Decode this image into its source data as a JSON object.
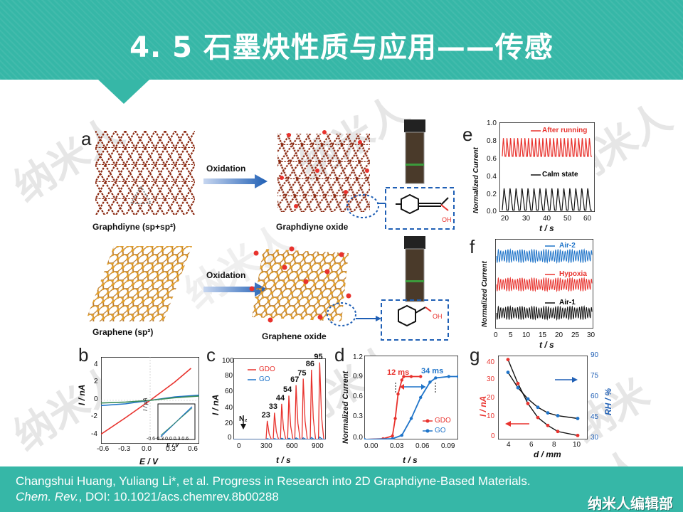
{
  "header": {
    "title": "4. 5  石墨炔性质与应用——传感"
  },
  "watermarks": [
    "纳米人",
    "纳米人",
    "纳米人",
    "纳米人",
    "纳米人",
    "纳米人",
    "纳米人"
  ],
  "figure": {
    "panel_a": {
      "letter": "a",
      "arrow_label_top": "Oxidation",
      "arrow_label_bottom": "Oxidation",
      "caption_graphdiyne": "Graphdiyne (sp+sp²)",
      "caption_graphdiyne_oxide": "Graphdiyne oxide",
      "caption_graphene": "Graphene (sp²)",
      "caption_graphene_oxide": "Graphene oxide",
      "oh_label": "OH"
    },
    "panel_b": {
      "letter": "b",
      "ylabel": "I / nA",
      "xlabel": "E / V",
      "inset_ylabel": "I / pA",
      "inset_xlabel": "E / V",
      "xticks": [
        "-0.6",
        "-0.3",
        "0.0",
        "0.3",
        "0.6"
      ],
      "yticks": [
        "4",
        "2",
        "0",
        "-2",
        "-4"
      ],
      "inset_xticks": "-0.6-0.3 0.0 0.3 0.6"
    },
    "panel_c": {
      "letter": "c",
      "ylabel": "I / nA",
      "xlabel": "t / s",
      "xticks": [
        "0",
        "300",
        "600",
        "900"
      ],
      "yticks": [
        "100",
        "80",
        "60",
        "40",
        "20",
        "0"
      ],
      "legend": [
        "GDO",
        "GO"
      ],
      "n2_label": "N₂",
      "peak_labels": [
        "23",
        "33",
        "44",
        "54",
        "67",
        "75",
        "86",
        "95"
      ]
    },
    "panel_d": {
      "letter": "d",
      "ylabel": "Normalized Current",
      "xlabel": "t / s",
      "xticks": [
        "0.00",
        "0.03",
        "0.06",
        "0.09"
      ],
      "yticks": [
        "1.2",
        "0.9",
        "0.6",
        "0.3",
        "0.0"
      ],
      "legend": [
        "GDO",
        "GO"
      ],
      "annot_1": "12 ms",
      "annot_2": "34 ms"
    },
    "panel_e": {
      "letter": "e",
      "ylabel": "Normalized Current",
      "xlabel": "t / s",
      "xticks": [
        "20",
        "30",
        "40",
        "50",
        "60"
      ],
      "yticks": [
        "1.0",
        "0.8",
        "0.6",
        "0.4",
        "0.2",
        "0.0"
      ],
      "label_after": "After running",
      "label_calm": "Calm state"
    },
    "panel_f": {
      "letter": "f",
      "ylabel": "Normalized Current",
      "xlabel": "t / s",
      "xticks": [
        "0",
        "5",
        "10",
        "15",
        "20",
        "25",
        "30"
      ],
      "label_air2": "Air-2",
      "label_hypoxia": "Hypoxia",
      "label_air1": "Air-1"
    },
    "panel_g": {
      "letter": "g",
      "ylabel_left": "I / nA",
      "ylabel_right": "RH / %",
      "xlabel": "d / mm",
      "xticks": [
        "4",
        "6",
        "8",
        "10"
      ],
      "yticks_left": [
        "40",
        "30",
        "20",
        "10",
        "0"
      ],
      "yticks_right": [
        "90",
        "75",
        "60",
        "45",
        "30"
      ]
    }
  },
  "chart_data": [
    {
      "type": "line",
      "panel": "b",
      "xlabel": "E / V",
      "ylabel": "I / nA",
      "xlim": [
        -0.6,
        0.6
      ],
      "ylim": [
        -5,
        5
      ],
      "series": [
        {
          "x": [
            -0.6,
            -0.3,
            0.0,
            0.3,
            0.5
          ],
          "y": [
            -3.9,
            -2.0,
            0.0,
            2.1,
            3.7
          ]
        },
        {
          "x": [
            -0.6,
            -0.3,
            0.0,
            0.3,
            0.6
          ],
          "y": [
            -0.6,
            -0.4,
            0.0,
            0.4,
            0.6
          ]
        },
        {
          "x": [
            -0.6,
            -0.3,
            0.0,
            0.3,
            0.6
          ],
          "y": [
            -0.3,
            -0.2,
            0.0,
            0.3,
            0.5
          ]
        }
      ]
    },
    {
      "type": "line",
      "panel": "c",
      "xlabel": "t / s",
      "ylabel": "I / nA",
      "xlim": [
        0,
        900
      ],
      "ylim": [
        0,
        100
      ],
      "series": [
        {
          "name": "GDO",
          "peaks_at_s": [
            330,
            400,
            470,
            540,
            610,
            680,
            760,
            840
          ],
          "peak_values": [
            23,
            33,
            44,
            54,
            67,
            75,
            86,
            95
          ]
        },
        {
          "name": "GO",
          "peaks_at_s": [
            330,
            400,
            470,
            540,
            610,
            680,
            760,
            840
          ],
          "peak_values": [
            1,
            1,
            1.5,
            1.5,
            2,
            2,
            2.5,
            3
          ]
        }
      ]
    },
    {
      "type": "line",
      "panel": "d",
      "xlabel": "t / s",
      "ylabel": "Normalized Current",
      "xlim": [
        0,
        0.1
      ],
      "ylim": [
        0,
        1.2
      ],
      "series": [
        {
          "name": "GDO",
          "x": [
            0.0,
            0.02,
            0.03,
            0.033,
            0.036,
            0.04,
            0.042,
            0.05,
            0.06
          ],
          "y": [
            0.0,
            0.01,
            0.05,
            0.3,
            0.65,
            0.85,
            0.9,
            0.9,
            0.9
          ]
        },
        {
          "name": "GO",
          "x": [
            0.0,
            0.03,
            0.04,
            0.05,
            0.06,
            0.07,
            0.076,
            0.09,
            0.1
          ],
          "y": [
            0.0,
            0.01,
            0.06,
            0.3,
            0.6,
            0.82,
            0.88,
            0.9,
            0.9
          ]
        }
      ]
    },
    {
      "type": "line",
      "panel": "e",
      "xlabel": "t / s",
      "ylabel": "Normalized Current",
      "xlim": [
        18,
        62
      ],
      "ylim": [
        0,
        1.0
      ],
      "series": [
        {
          "name": "After running",
          "min": 0.62,
          "max": 0.83,
          "cycles": 25
        },
        {
          "name": "Calm state",
          "min": 0.02,
          "max": 0.27,
          "cycles": 15
        }
      ]
    },
    {
      "type": "line",
      "panel": "f",
      "xlabel": "t / s",
      "ylabel": "Normalized Current",
      "xlim": [
        0,
        30
      ],
      "series": [
        {
          "name": "Air-2",
          "cycles": 40
        },
        {
          "name": "Hypoxia",
          "cycles": 40
        },
        {
          "name": "Air-1",
          "cycles": 40
        }
      ]
    },
    {
      "type": "line",
      "panel": "g",
      "xlabel": "d / mm",
      "ylabel": "I / nA",
      "xlim": [
        2,
        11
      ],
      "ylim": [
        0,
        42
      ],
      "series": [
        {
          "x": [
            3,
            4,
            5,
            6,
            7,
            8,
            10
          ],
          "y": [
            40,
            28,
            18,
            11,
            7,
            4,
            2
          ]
        },
        {
          "axis": "right",
          "x": [
            3,
            4,
            5,
            6,
            7,
            8,
            10
          ],
          "y": [
            78,
            67,
            59,
            53,
            49,
            47,
            45
          ]
        }
      ]
    }
  ],
  "footer": {
    "citation_line1": "Changshui Huang, Yuliang Li*, et al. Progress in Research into 2D Graphdiyne-Based Materials.",
    "journal": "Chem. Rev.",
    "doi": ", DOI: 10.1021/acs.chemrev.8b00288",
    "brand": "纳米人编辑部"
  },
  "colors": {
    "teal": "#36b7a7",
    "red": "#e8322d",
    "blue": "#1f74c9",
    "black": "#111111",
    "graphdiyne": "#8b2a12",
    "graphene": "#e3a02a"
  }
}
